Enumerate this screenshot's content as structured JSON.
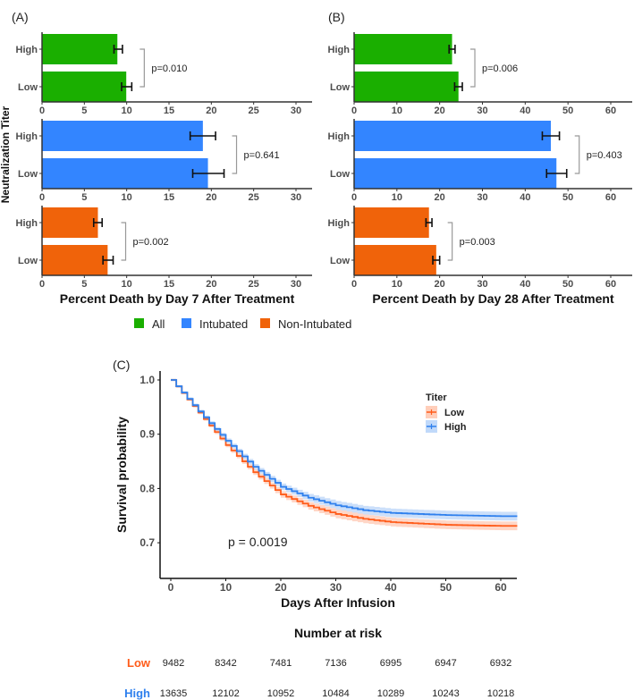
{
  "colors": {
    "All": "#1aaf00",
    "Intubated": "#3385ff",
    "Non-Intubated": "#f0630a",
    "Low": "#ff5c1a",
    "High": "#2f80ed"
  },
  "legend": {
    "items": [
      "All",
      "Intubated",
      "Non-Intubated"
    ]
  },
  "chart_data": [
    {
      "type": "bar",
      "panel_label": "(A)",
      "orientation": "horizontal",
      "ylabel": "Neutralization Titer",
      "xlabel": "Percent Death by Day 7 After Treatment",
      "xlim": [
        0,
        32
      ],
      "xticks": [
        "0",
        "5",
        "10",
        "15",
        "20",
        "25",
        "30"
      ],
      "groups": [
        {
          "name": "All",
          "categories": [
            "High",
            "Low"
          ],
          "values": [
            8.9,
            9.95
          ],
          "err_low": [
            8.5,
            9.4
          ],
          "err_high": [
            9.5,
            10.6
          ],
          "p": "p=0.010"
        },
        {
          "name": "Intubated",
          "categories": [
            "High",
            "Low"
          ],
          "values": [
            19.0,
            19.6
          ],
          "err_low": [
            17.5,
            17.8
          ],
          "err_high": [
            20.5,
            21.5
          ],
          "p": "p=0.641"
        },
        {
          "name": "Non-Intubated",
          "categories": [
            "High",
            "Low"
          ],
          "values": [
            6.6,
            7.75
          ],
          "err_low": [
            6.1,
            7.2
          ],
          "err_high": [
            7.1,
            8.4
          ],
          "p": "p=0.002"
        }
      ]
    },
    {
      "type": "bar",
      "panel_label": "(B)",
      "orientation": "horizontal",
      "xlabel": "Percent Death by Day 28 After Treatment",
      "xlim": [
        0,
        65
      ],
      "xticks": [
        "0",
        "10",
        "20",
        "30",
        "40",
        "50",
        "60"
      ],
      "groups": [
        {
          "name": "All",
          "categories": [
            "High",
            "Low"
          ],
          "values": [
            22.9,
            24.4
          ],
          "err_low": [
            22.2,
            23.5
          ],
          "err_high": [
            23.6,
            25.3
          ],
          "p": "p=0.006"
        },
        {
          "name": "Intubated",
          "categories": [
            "High",
            "Low"
          ],
          "values": [
            46.0,
            47.3
          ],
          "err_low": [
            44.0,
            45.0
          ],
          "err_high": [
            48.0,
            49.7
          ],
          "p": "p=0.403"
        },
        {
          "name": "Non-Intubated",
          "categories": [
            "High",
            "Low"
          ],
          "values": [
            17.5,
            19.2
          ],
          "err_low": [
            16.8,
            18.4
          ],
          "err_high": [
            18.2,
            20.0
          ],
          "p": "p=0.003"
        }
      ]
    },
    {
      "type": "line",
      "panel_label": "(C)",
      "xlabel": "Days After Infusion",
      "ylabel": "Survival probability",
      "xlim": [
        -2,
        63
      ],
      "ylim": [
        0.634,
        1.016
      ],
      "xticks": [
        "0",
        "10",
        "20",
        "30",
        "40",
        "50",
        "60"
      ],
      "yticks": [
        "0.7",
        "0.8",
        "0.9",
        "1.0"
      ],
      "legend_title": "Titer",
      "annotation": "p = 0.0019",
      "x": [
        0,
        5,
        10,
        15,
        20,
        25,
        30,
        35,
        40,
        50,
        60,
        63
      ],
      "series": [
        {
          "name": "Low",
          "values": [
            1.0,
            0.94,
            0.88,
            0.83,
            0.789,
            0.768,
            0.753,
            0.744,
            0.738,
            0.733,
            0.731,
            0.731
          ]
        },
        {
          "name": "High",
          "values": [
            1.0,
            0.942,
            0.888,
            0.84,
            0.803,
            0.783,
            0.769,
            0.76,
            0.755,
            0.751,
            0.749,
            0.749
          ]
        }
      ],
      "risk_table": {
        "title": "Number at risk",
        "rows": [
          {
            "name": "Low",
            "values": [
              "9482",
              "8342",
              "7481",
              "7136",
              "6995",
              "6947",
              "6932"
            ]
          },
          {
            "name": "High",
            "values": [
              "13635",
              "12102",
              "10952",
              "10484",
              "10289",
              "10243",
              "10218"
            ]
          }
        ]
      }
    }
  ]
}
